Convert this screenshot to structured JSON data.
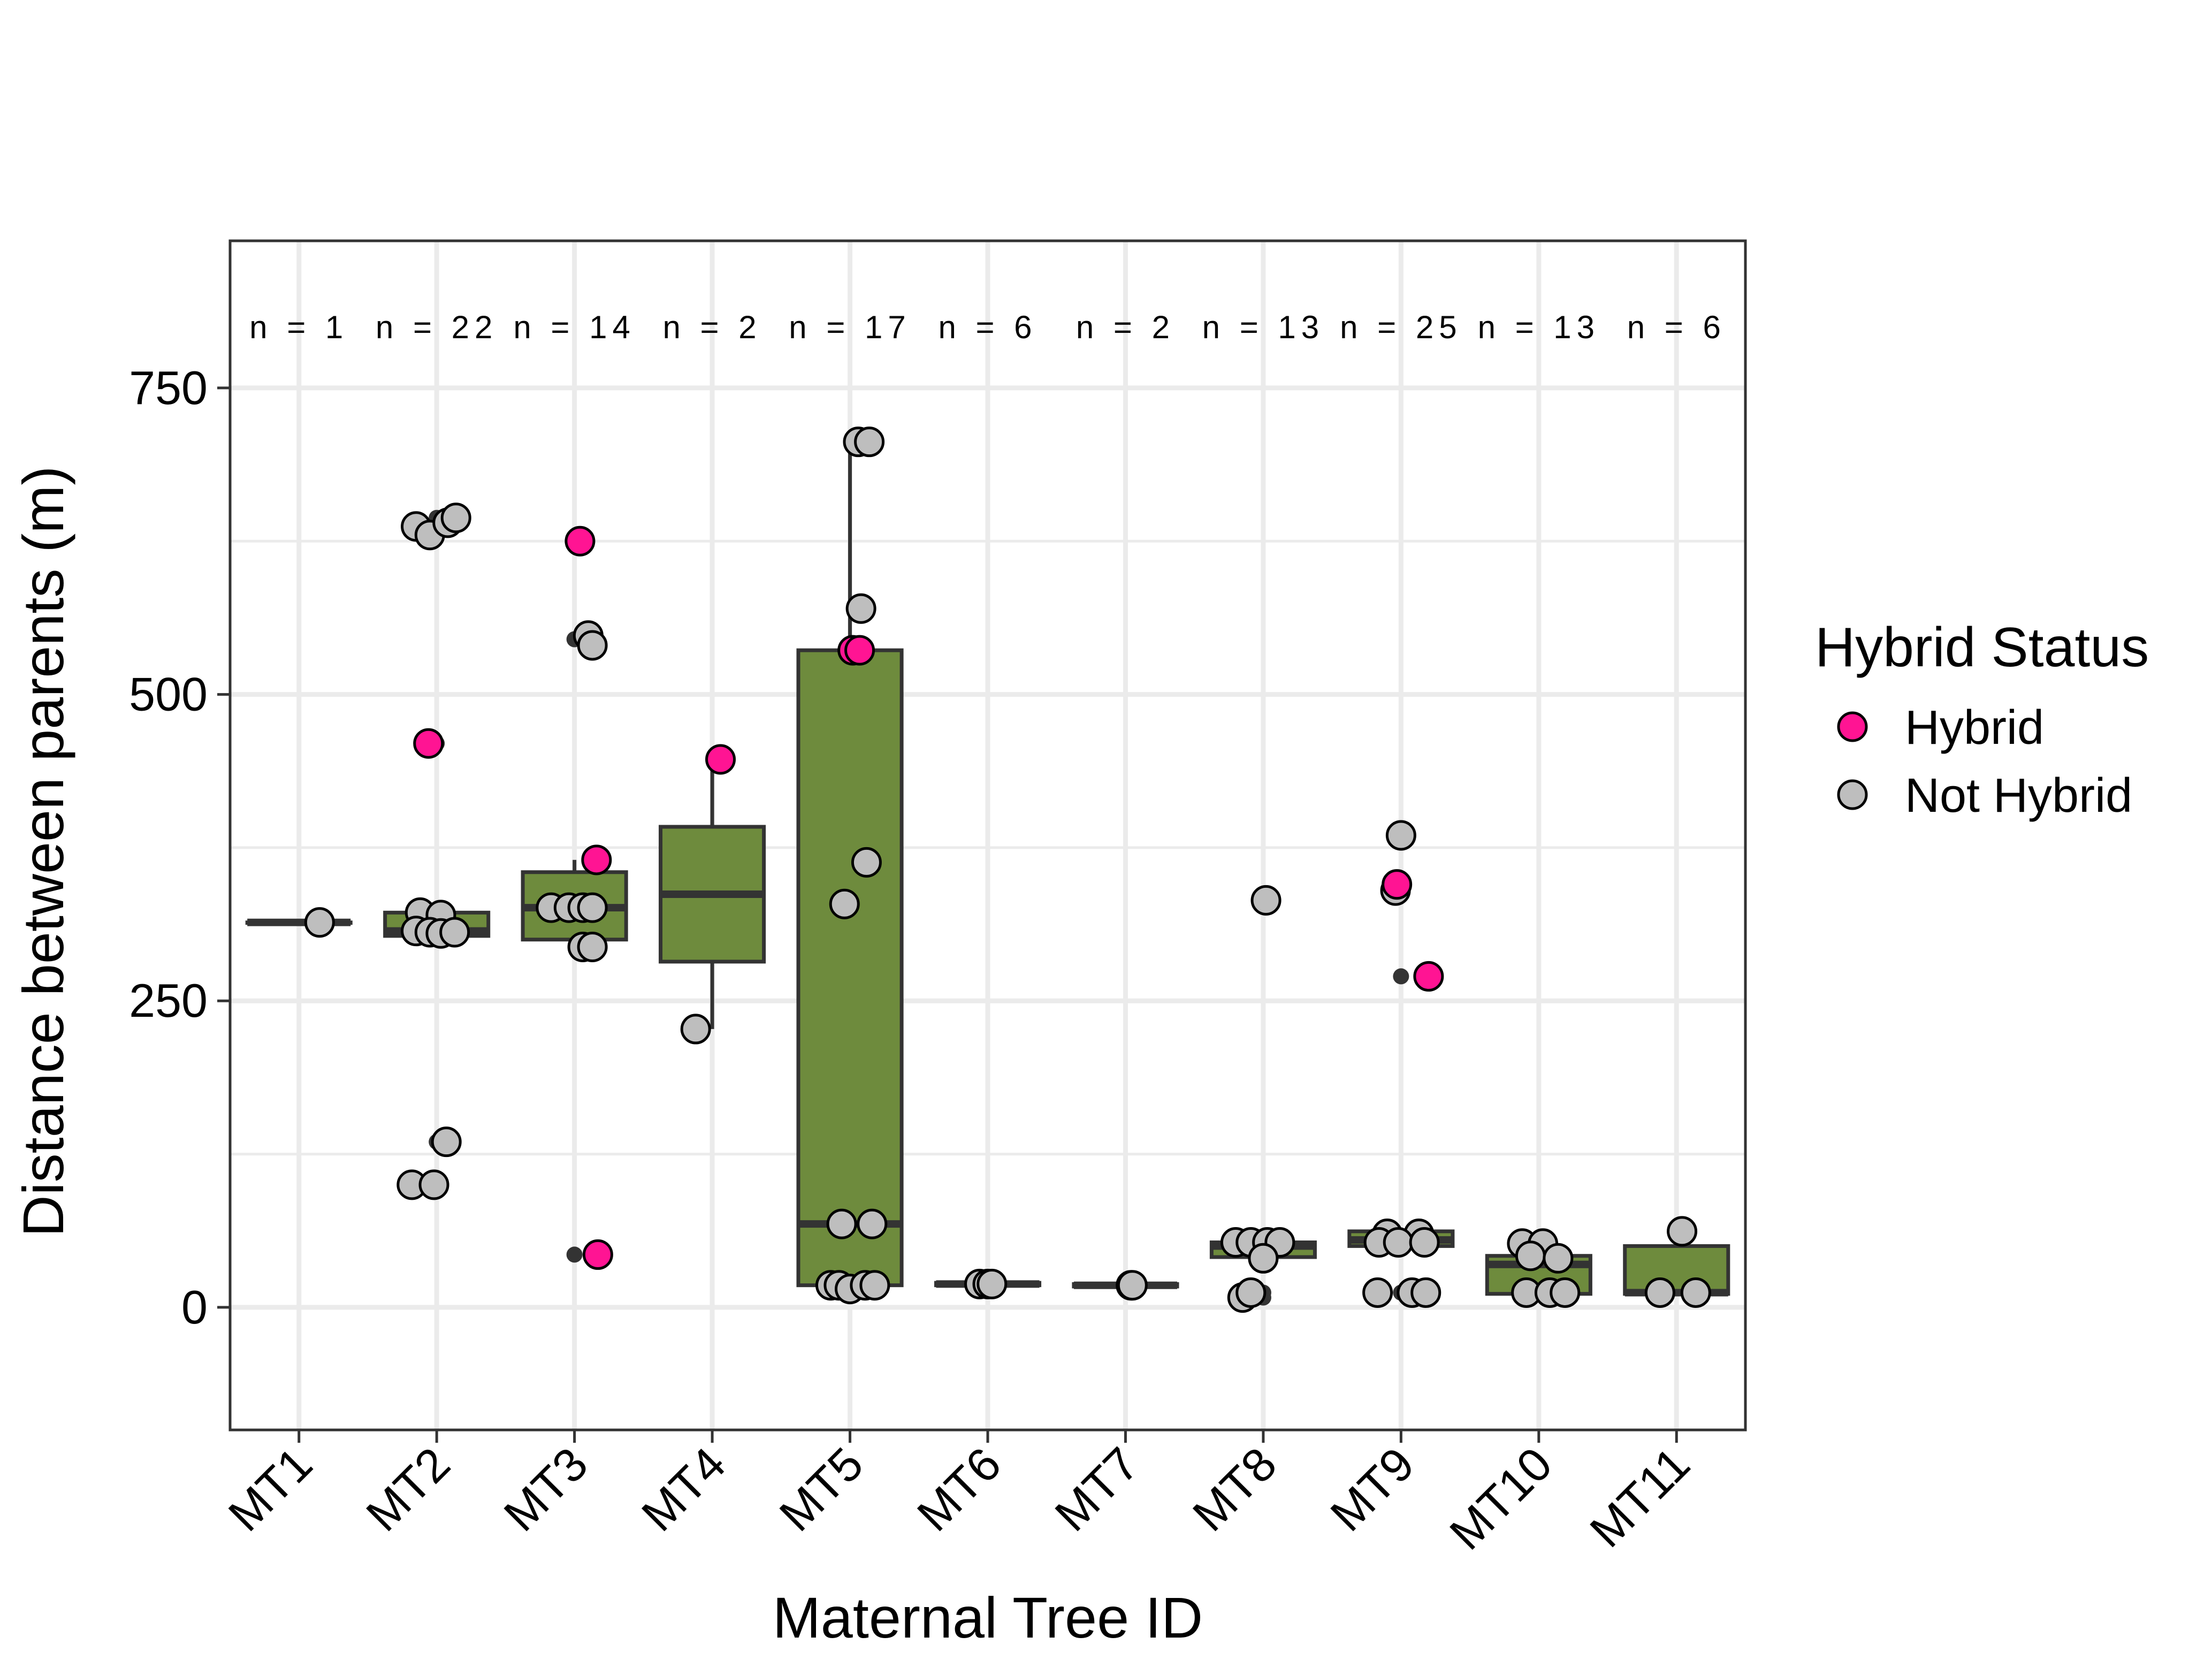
{
  "chart_data": {
    "type": "box",
    "title": "",
    "xlabel": "Maternal Tree ID",
    "ylabel": "Distance between parents (m)",
    "ylim": [
      -100,
      870
    ],
    "yticks": [
      0,
      250,
      500,
      750
    ],
    "grid": true,
    "legend_position": "right",
    "legend_title": "Hybrid Status",
    "colors": {
      "box_fill": "#6e8b3d",
      "box_stroke": "#333333",
      "hybrid": "#ff1493",
      "not_hybrid": "#bebebe",
      "outlier": "#333333",
      "grid": "#ebebeb",
      "panel_border": "#333333"
    },
    "series": [
      {
        "name": "Hybrid",
        "color": "#ff1493"
      },
      {
        "name": "Not Hybrid",
        "color": "#bebebe"
      }
    ],
    "categories": [
      "MT1",
      "MT2",
      "MT3",
      "MT4",
      "MT5",
      "MT6",
      "MT7",
      "MT8",
      "MT9",
      "MT10",
      "MT11"
    ],
    "n_labels": [
      "n = 1",
      "n = 22",
      "n = 14",
      "n = 2",
      "n = 17",
      "n = 6",
      "n = 2",
      "n = 13",
      "n = 25",
      "n = 13",
      "n = 6"
    ],
    "boxes": [
      {
        "q1": 314,
        "median": 314,
        "q3": 314,
        "whisker_low": 314,
        "whisker_high": 314,
        "outliers": []
      },
      {
        "q1": 303,
        "median": 307,
        "q3": 322,
        "whisker_low": 300,
        "whisker_high": 322,
        "outliers": [
          644,
          636,
          100,
          135,
          460
        ]
      },
      {
        "q1": 300,
        "median": 326,
        "q3": 355,
        "whisker_low": 290,
        "whisker_high": 365,
        "outliers": [
          545,
          43
        ]
      },
      {
        "q1": 282,
        "median": 337,
        "q3": 392,
        "whisker_low": 227,
        "whisker_high": 447,
        "outliers": []
      },
      {
        "q1": 18,
        "median": 68,
        "q3": 536,
        "whisker_low": 15,
        "whisker_high": 706,
        "outliers": []
      },
      {
        "q1": 18,
        "median": 19,
        "q3": 20,
        "whisker_low": 18,
        "whisker_high": 20,
        "outliers": []
      },
      {
        "q1": 17,
        "median": 18,
        "q3": 19,
        "whisker_low": 17,
        "whisker_high": 19,
        "outliers": []
      },
      {
        "q1": 41,
        "median": 50,
        "q3": 53,
        "whisker_low": 41,
        "whisker_high": 53,
        "outliers": [
          332,
          8,
          12
        ]
      },
      {
        "q1": 50,
        "median": 55,
        "q3": 62,
        "whisker_low": 50,
        "whisker_high": 62,
        "outliers": [
          385,
          340,
          270,
          12
        ]
      },
      {
        "q1": 11,
        "median": 35,
        "q3": 42,
        "whisker_low": 11,
        "whisker_high": 52,
        "outliers": []
      },
      {
        "q1": 11,
        "median": 12,
        "q3": 50,
        "whisker_low": 11,
        "whisker_high": 62,
        "outliers": []
      }
    ],
    "points": [
      {
        "category": "MT1",
        "x_offset": 0.15,
        "y": 314,
        "status": "Not Hybrid"
      },
      {
        "category": "MT2",
        "x_offset": -0.15,
        "y": 637,
        "status": "Not Hybrid"
      },
      {
        "category": "MT2",
        "x_offset": -0.05,
        "y": 630,
        "status": "Not Hybrid"
      },
      {
        "category": "MT2",
        "x_offset": 0.08,
        "y": 640,
        "status": "Not Hybrid"
      },
      {
        "category": "MT2",
        "x_offset": 0.14,
        "y": 644,
        "status": "Not Hybrid"
      },
      {
        "category": "MT2",
        "x_offset": -0.06,
        "y": 460,
        "status": "Hybrid"
      },
      {
        "category": "MT2",
        "x_offset": -0.12,
        "y": 322,
        "status": "Not Hybrid"
      },
      {
        "category": "MT2",
        "x_offset": 0.03,
        "y": 320,
        "status": "Not Hybrid"
      },
      {
        "category": "MT2",
        "x_offset": -0.15,
        "y": 307,
        "status": "Not Hybrid"
      },
      {
        "category": "MT2",
        "x_offset": -0.05,
        "y": 306,
        "status": "Not Hybrid"
      },
      {
        "category": "MT2",
        "x_offset": 0.03,
        "y": 305,
        "status": "Not Hybrid"
      },
      {
        "category": "MT2",
        "x_offset": 0.13,
        "y": 306,
        "status": "Not Hybrid"
      },
      {
        "category": "MT2",
        "x_offset": 0.07,
        "y": 135,
        "status": "Not Hybrid"
      },
      {
        "category": "MT2",
        "x_offset": -0.18,
        "y": 100,
        "status": "Not Hybrid"
      },
      {
        "category": "MT2",
        "x_offset": -0.02,
        "y": 100,
        "status": "Not Hybrid"
      },
      {
        "category": "MT3",
        "x_offset": 0.04,
        "y": 625,
        "status": "Hybrid"
      },
      {
        "category": "MT3",
        "x_offset": 0.1,
        "y": 548,
        "status": "Not Hybrid"
      },
      {
        "category": "MT3",
        "x_offset": 0.13,
        "y": 540,
        "status": "Not Hybrid"
      },
      {
        "category": "MT3",
        "x_offset": 0.16,
        "y": 365,
        "status": "Hybrid"
      },
      {
        "category": "MT3",
        "x_offset": -0.17,
        "y": 326,
        "status": "Not Hybrid"
      },
      {
        "category": "MT3",
        "x_offset": -0.04,
        "y": 326,
        "status": "Not Hybrid"
      },
      {
        "category": "MT3",
        "x_offset": 0.06,
        "y": 326,
        "status": "Not Hybrid"
      },
      {
        "category": "MT3",
        "x_offset": 0.13,
        "y": 326,
        "status": "Not Hybrid"
      },
      {
        "category": "MT3",
        "x_offset": 0.06,
        "y": 294,
        "status": "Not Hybrid"
      },
      {
        "category": "MT3",
        "x_offset": 0.13,
        "y": 294,
        "status": "Not Hybrid"
      },
      {
        "category": "MT3",
        "x_offset": 0.17,
        "y": 43,
        "status": "Hybrid"
      },
      {
        "category": "MT4",
        "x_offset": 0.06,
        "y": 447,
        "status": "Hybrid"
      },
      {
        "category": "MT4",
        "x_offset": -0.12,
        "y": 227,
        "status": "Not Hybrid"
      },
      {
        "category": "MT5",
        "x_offset": 0.06,
        "y": 706,
        "status": "Not Hybrid"
      },
      {
        "category": "MT5",
        "x_offset": 0.14,
        "y": 706,
        "status": "Not Hybrid"
      },
      {
        "category": "MT5",
        "x_offset": 0.08,
        "y": 570,
        "status": "Not Hybrid"
      },
      {
        "category": "MT5",
        "x_offset": 0.02,
        "y": 536,
        "status": "Hybrid"
      },
      {
        "category": "MT5",
        "x_offset": 0.07,
        "y": 536,
        "status": "Hybrid"
      },
      {
        "category": "MT5",
        "x_offset": 0.12,
        "y": 363,
        "status": "Not Hybrid"
      },
      {
        "category": "MT5",
        "x_offset": -0.04,
        "y": 329,
        "status": "Not Hybrid"
      },
      {
        "category": "MT5",
        "x_offset": -0.06,
        "y": 68,
        "status": "Not Hybrid"
      },
      {
        "category": "MT5",
        "x_offset": 0.16,
        "y": 68,
        "status": "Not Hybrid"
      },
      {
        "category": "MT5",
        "x_offset": -0.14,
        "y": 18,
        "status": "Not Hybrid"
      },
      {
        "category": "MT5",
        "x_offset": -0.08,
        "y": 18,
        "status": "Not Hybrid"
      },
      {
        "category": "MT5",
        "x_offset": 0.0,
        "y": 15,
        "status": "Not Hybrid"
      },
      {
        "category": "MT5",
        "x_offset": 0.11,
        "y": 18,
        "status": "Not Hybrid"
      },
      {
        "category": "MT5",
        "x_offset": 0.18,
        "y": 18,
        "status": "Not Hybrid"
      },
      {
        "category": "MT6",
        "x_offset": -0.06,
        "y": 19,
        "status": "Not Hybrid"
      },
      {
        "category": "MT6",
        "x_offset": 0.0,
        "y": 19,
        "status": "Not Hybrid"
      },
      {
        "category": "MT6",
        "x_offset": 0.03,
        "y": 19,
        "status": "Not Hybrid"
      },
      {
        "category": "MT7",
        "x_offset": 0.04,
        "y": 18,
        "status": "Not Hybrid"
      },
      {
        "category": "MT7",
        "x_offset": 0.05,
        "y": 18,
        "status": "Not Hybrid"
      },
      {
        "category": "MT8",
        "x_offset": 0.02,
        "y": 332,
        "status": "Not Hybrid"
      },
      {
        "category": "MT8",
        "x_offset": -0.2,
        "y": 53,
        "status": "Not Hybrid"
      },
      {
        "category": "MT8",
        "x_offset": -0.09,
        "y": 53,
        "status": "Not Hybrid"
      },
      {
        "category": "MT8",
        "x_offset": 0.03,
        "y": 53,
        "status": "Not Hybrid"
      },
      {
        "category": "MT8",
        "x_offset": 0.12,
        "y": 53,
        "status": "Not Hybrid"
      },
      {
        "category": "MT8",
        "x_offset": 0.0,
        "y": 40,
        "status": "Not Hybrid"
      },
      {
        "category": "MT8",
        "x_offset": -0.15,
        "y": 8,
        "status": "Not Hybrid"
      },
      {
        "category": "MT8",
        "x_offset": -0.09,
        "y": 12,
        "status": "Not Hybrid"
      },
      {
        "category": "MT9",
        "x_offset": 0.0,
        "y": 385,
        "status": "Not Hybrid"
      },
      {
        "category": "MT9",
        "x_offset": -0.04,
        "y": 340,
        "status": "Not Hybrid"
      },
      {
        "category": "MT9",
        "x_offset": -0.03,
        "y": 345,
        "status": "Hybrid"
      },
      {
        "category": "MT9",
        "x_offset": 0.2,
        "y": 270,
        "status": "Hybrid"
      },
      {
        "category": "MT9",
        "x_offset": -0.1,
        "y": 60,
        "status": "Not Hybrid"
      },
      {
        "category": "MT9",
        "x_offset": 0.13,
        "y": 60,
        "status": "Not Hybrid"
      },
      {
        "category": "MT9",
        "x_offset": -0.16,
        "y": 53,
        "status": "Not Hybrid"
      },
      {
        "category": "MT9",
        "x_offset": -0.02,
        "y": 53,
        "status": "Not Hybrid"
      },
      {
        "category": "MT9",
        "x_offset": 0.17,
        "y": 53,
        "status": "Not Hybrid"
      },
      {
        "category": "MT9",
        "x_offset": -0.17,
        "y": 12,
        "status": "Not Hybrid"
      },
      {
        "category": "MT9",
        "x_offset": 0.08,
        "y": 12,
        "status": "Not Hybrid"
      },
      {
        "category": "MT9",
        "x_offset": 0.18,
        "y": 12,
        "status": "Not Hybrid"
      },
      {
        "category": "MT10",
        "x_offset": -0.12,
        "y": 52,
        "status": "Not Hybrid"
      },
      {
        "category": "MT10",
        "x_offset": 0.03,
        "y": 52,
        "status": "Not Hybrid"
      },
      {
        "category": "MT10",
        "x_offset": -0.06,
        "y": 42,
        "status": "Not Hybrid"
      },
      {
        "category": "MT10",
        "x_offset": 0.14,
        "y": 40,
        "status": "Not Hybrid"
      },
      {
        "category": "MT10",
        "x_offset": -0.09,
        "y": 12,
        "status": "Not Hybrid"
      },
      {
        "category": "MT10",
        "x_offset": 0.08,
        "y": 12,
        "status": "Not Hybrid"
      },
      {
        "category": "MT10",
        "x_offset": 0.19,
        "y": 12,
        "status": "Not Hybrid"
      },
      {
        "category": "MT11",
        "x_offset": 0.04,
        "y": 62,
        "status": "Not Hybrid"
      },
      {
        "category": "MT11",
        "x_offset": -0.12,
        "y": 12,
        "status": "Not Hybrid"
      },
      {
        "category": "MT11",
        "x_offset": 0.14,
        "y": 12,
        "status": "Not Hybrid"
      }
    ]
  }
}
